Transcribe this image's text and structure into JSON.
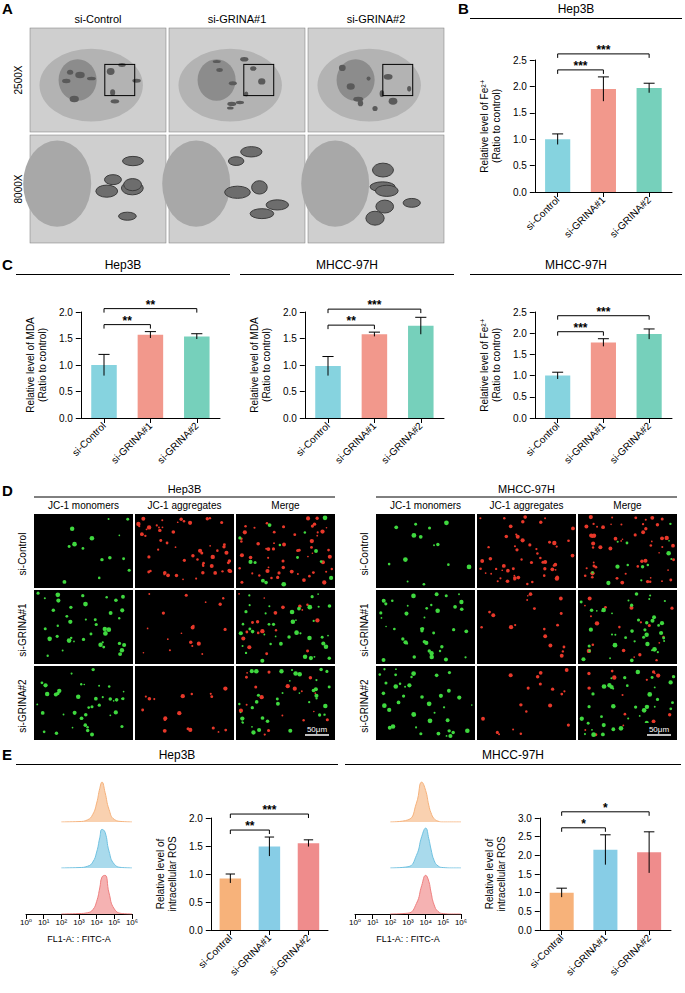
{
  "panel_labels": [
    "A",
    "B",
    "C",
    "D",
    "E"
  ],
  "images": {
    "A": {
      "columns": [
        "si-Control",
        "si-GRINA#1",
        "si-GRINA#2"
      ],
      "rows": [
        "2500X",
        "8000X"
      ]
    },
    "D": [
      {
        "title": "Hep3B",
        "columns": [
          "JC-1 monomers",
          "JC-1 aggregates",
          "Merge"
        ],
        "rows": [
          "si-Control",
          "si-GRINA#1",
          "si-GRINA#2"
        ],
        "scale_bar": "50μm"
      },
      {
        "title": "MHCC-97H",
        "columns": [
          "JC-1 monomers",
          "JC-1 aggregates",
          "Merge"
        ],
        "rows": [
          "si-Control",
          "si-GRINA#1",
          "si-GRINA#2"
        ],
        "scale_bar": "50μm"
      }
    ]
  },
  "chart_data": [
    {
      "type": "bar",
      "title": "Hep3B",
      "y_label": "Relative level of Fe²⁺ (Ratio to control)",
      "categories": [
        "si-Control",
        "si-GRINA#1",
        "si-GRINA#2"
      ],
      "values": [
        1.0,
        1.95,
        1.97
      ],
      "errors": [
        0.1,
        0.23,
        0.09
      ],
      "colors": [
        "#86d3df",
        "#f2988c",
        "#76d0bb"
      ],
      "ylim": [
        0,
        2.5
      ],
      "yticks": [
        {
          "value": 0,
          "label": "0.0"
        },
        0.5,
        {
          "value": 1,
          "label": "1.0"
        },
        1.5,
        {
          "value": 2,
          "label": "2.0"
        },
        2.5
      ],
      "grid": false,
      "significance": [
        {
          "groups": [
            "si-Control",
            "si-GRINA#1"
          ],
          "label": "***"
        },
        {
          "groups": [
            "si-Control",
            "si-GRINA#2"
          ],
          "label": "***"
        }
      ]
    },
    {
      "type": "bar",
      "title": "MHCC-97H",
      "y_label": "Relative level of Fe²⁺ (Ratio to control)",
      "categories": [
        "si-Control",
        "si-GRINA#1",
        "si-GRINA#2"
      ],
      "values": [
        1.0,
        1.78,
        1.98
      ],
      "errors": [
        0.08,
        0.09,
        0.12
      ],
      "colors": [
        "#86d3df",
        "#f2988c",
        "#76d0bb"
      ],
      "ylim": [
        0,
        2.5
      ],
      "yticks": [
        {
          "value": 0,
          "label": "0.0"
        },
        0.5,
        {
          "value": 1,
          "label": "1.0"
        },
        1.5,
        {
          "value": 2,
          "label": "2.0"
        },
        2.5
      ],
      "grid": false,
      "significance": [
        {
          "groups": [
            "si-Control",
            "si-GRINA#1"
          ],
          "label": "***"
        },
        {
          "groups": [
            "si-Control",
            "si-GRINA#2"
          ],
          "label": "***"
        }
      ]
    },
    {
      "type": "bar",
      "title": "Hep3B",
      "y_label": "Relative level of MDA (Ratio to control)",
      "categories": [
        "si-Control",
        "si-GRINA#1",
        "si-GRINA#2"
      ],
      "values": [
        1.0,
        1.57,
        1.54
      ],
      "errors": [
        0.2,
        0.06,
        0.05
      ],
      "colors": [
        "#86d3df",
        "#f2988c",
        "#76d0bb"
      ],
      "ylim": [
        0,
        2
      ],
      "yticks": [
        {
          "value": 0,
          "label": "0.0"
        },
        0.5,
        {
          "value": 1,
          "label": "1.0"
        },
        1.5,
        {
          "value": 2,
          "label": "2.0"
        }
      ],
      "grid": false,
      "significance": [
        {
          "groups": [
            "si-Control",
            "si-GRINA#1"
          ],
          "label": "**"
        },
        {
          "groups": [
            "si-Control",
            "si-GRINA#2"
          ],
          "label": "**"
        }
      ]
    },
    {
      "type": "bar",
      "title": "MHCC-97H",
      "y_label": "Relative level of MDA (Ratio to control)",
      "categories": [
        "si-Control",
        "si-GRINA#1",
        "si-GRINA#2"
      ],
      "values": [
        0.98,
        1.58,
        1.74
      ],
      "errors": [
        0.18,
        0.04,
        0.16
      ],
      "colors": [
        "#86d3df",
        "#f2988c",
        "#76d0bb"
      ],
      "ylim": [
        0,
        2
      ],
      "yticks": [
        {
          "value": 0,
          "label": "0.0"
        },
        0.5,
        {
          "value": 1,
          "label": "1.0"
        },
        1.5,
        {
          "value": 2,
          "label": "2.0"
        }
      ],
      "grid": false,
      "significance": [
        {
          "groups": [
            "si-Control",
            "si-GRINA#1"
          ],
          "label": "**"
        },
        {
          "groups": [
            "si-Control",
            "si-GRINA#2"
          ],
          "label": "***"
        }
      ]
    },
    {
      "type": "ridgeline",
      "x_label": "FL1-A: : FITC-A",
      "log": "x",
      "xlim": [
        1,
        1000000
      ],
      "xticks": [
        {
          "value": 1,
          "label": "10⁰"
        },
        {
          "value": 10,
          "label": "10¹"
        },
        {
          "value": 100,
          "label": "10²"
        },
        {
          "value": 1000,
          "label": "10³"
        },
        {
          "value": 10000,
          "label": "10⁴"
        },
        {
          "value": 100000,
          "label": "10⁵"
        },
        {
          "value": 1000000,
          "label": "10⁶"
        }
      ],
      "ylim": [
        0,
        100
      ],
      "tick_labels": "x",
      "x": [
        100,
        1000,
        3000,
        6000,
        10000,
        15000,
        20000,
        30000,
        50000,
        100000,
        300000,
        1000000
      ],
      "series": [
        {
          "color": "#f5b27c",
          "values": [
            0,
            1,
            5,
            18,
            45,
            80,
            95,
            70,
            30,
            6,
            1,
            0
          ]
        },
        {
          "color": "#6fc1e0",
          "values": [
            0,
            1,
            4,
            14,
            38,
            72,
            92,
            85,
            40,
            9,
            1,
            0
          ]
        },
        {
          "color": "#ee7f7f",
          "values": [
            0,
            1,
            3,
            10,
            30,
            62,
            88,
            92,
            50,
            12,
            1,
            0
          ]
        }
      ]
    },
    {
      "type": "bar",
      "title": "Hep3B",
      "y_label": "Relative level of intracellular ROS",
      "categories": [
        "si-Contral",
        "si-GRINA#1",
        "si-GRINA#2"
      ],
      "values": [
        0.92,
        1.49,
        1.55
      ],
      "errors": [
        0.08,
        0.17,
        0.06
      ],
      "colors": [
        "#f7b27a",
        "#87cde6",
        "#ef8c8c"
      ],
      "ylim": [
        0,
        2
      ],
      "yticks": [
        {
          "value": 0,
          "label": "0.0"
        },
        0.5,
        {
          "value": 1,
          "label": "1.0"
        },
        1.5,
        {
          "value": 2,
          "label": "2.0"
        }
      ],
      "grid": false,
      "significance": [
        {
          "groups": [
            "si-Contral",
            "si-GRINA#1"
          ],
          "label": "**"
        },
        {
          "groups": [
            "si-Contral",
            "si-GRINA#2"
          ],
          "label": "***"
        }
      ]
    },
    {
      "type": "ridgeline",
      "x_label": "FL1-A: : FITC-A",
      "log": "x",
      "xlim": [
        1,
        1000000
      ],
      "xticks": [
        {
          "value": 1,
          "label": "10⁰"
        },
        {
          "value": 10,
          "label": "10¹"
        },
        {
          "value": 100,
          "label": "10²"
        },
        {
          "value": 1000,
          "label": "10³"
        },
        {
          "value": 10000,
          "label": "10⁴"
        },
        {
          "value": 100000,
          "label": "10⁵"
        },
        {
          "value": 1000000,
          "label": "10⁶"
        }
      ],
      "ylim": [
        0,
        100
      ],
      "tick_labels": "x",
      "x": [
        100,
        1000,
        3000,
        6000,
        10000,
        15000,
        20000,
        30000,
        50000,
        100000,
        300000,
        1000000
      ],
      "series": [
        {
          "color": "#f5b27c",
          "values": [
            0,
            5,
            45,
            95,
            75,
            40,
            22,
            8,
            2,
            0,
            0,
            0
          ]
        },
        {
          "color": "#6fc1e0",
          "values": [
            0,
            3,
            30,
            75,
            95,
            70,
            45,
            18,
            5,
            1,
            0,
            0
          ]
        },
        {
          "color": "#ee7f7f",
          "values": [
            0,
            2,
            25,
            68,
            92,
            78,
            52,
            22,
            6,
            1,
            0,
            0
          ]
        }
      ]
    },
    {
      "type": "bar",
      "title": "MHCC-97H",
      "y_label": "Relative level of intracellular ROS",
      "categories": [
        "si-Contral",
        "si-GRINA#1",
        "si-GRINA#2"
      ],
      "values": [
        1.0,
        2.15,
        2.08
      ],
      "errors": [
        0.12,
        0.4,
        0.55
      ],
      "colors": [
        "#f7b27a",
        "#87cde6",
        "#ef8c8c"
      ],
      "ylim": [
        0,
        3
      ],
      "yticks": [
        {
          "value": 0,
          "label": "0.0"
        },
        0.5,
        {
          "value": 1,
          "label": "1.0"
        },
        1.5,
        {
          "value": 2,
          "label": "2.0"
        },
        2.5,
        {
          "value": 3,
          "label": "3.0"
        }
      ],
      "grid": false,
      "significance": [
        {
          "groups": [
            "si-Contral",
            "si-GRINA#1"
          ],
          "label": "*"
        },
        {
          "groups": [
            "si-Contral",
            "si-GRINA#2"
          ],
          "label": "*"
        }
      ]
    }
  ]
}
